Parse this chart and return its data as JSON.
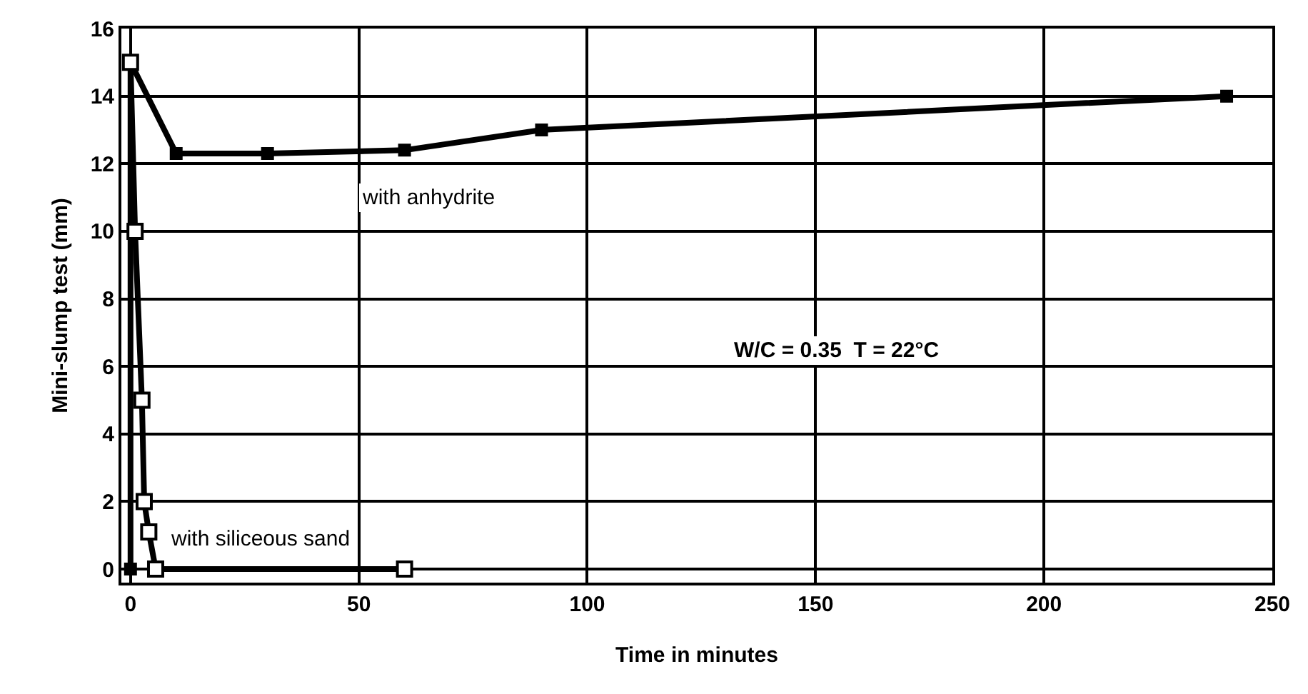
{
  "chart_data": {
    "type": "line",
    "xlabel": "Time in minutes",
    "ylabel": "Mini-slump test (mm)",
    "xlim": [
      -2,
      250
    ],
    "xticks": [
      0,
      50,
      100,
      150,
      200,
      250
    ],
    "ylim": [
      -0.4,
      16
    ],
    "yticks": [
      0,
      2,
      4,
      6,
      8,
      10,
      12,
      14,
      16
    ],
    "grid": true,
    "legend": false,
    "series": [
      {
        "name": "with anhydrite",
        "color": "#000000",
        "marker": "square",
        "x": [
          0,
          0,
          10,
          30,
          60,
          90,
          240
        ],
        "values": [
          0,
          15,
          12.3,
          12.3,
          12.4,
          13.0,
          14.0
        ]
      },
      {
        "name": "with siliceous sand",
        "color": "#000000",
        "marker": "square-open",
        "x": [
          0,
          1,
          2.5,
          3,
          4,
          5.5,
          60
        ],
        "values": [
          15,
          10,
          5,
          2,
          1.1,
          0,
          0
        ]
      }
    ],
    "annotations": [
      "W/C = 0.35  T = 22°C"
    ]
  }
}
